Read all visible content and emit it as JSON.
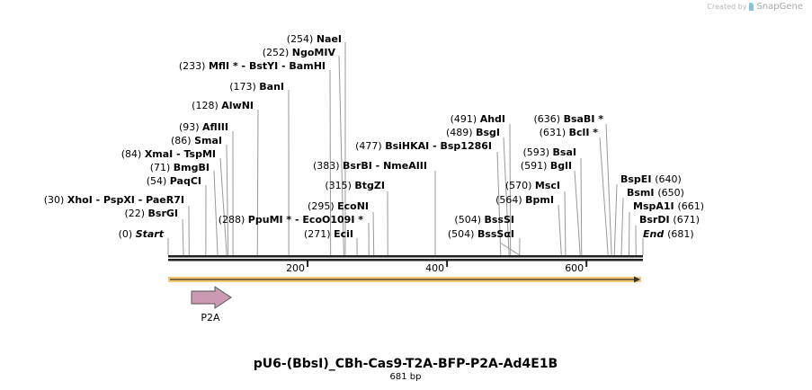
{
  "watermark": {
    "prefix": "Created by",
    "brand": "SnapGene"
  },
  "map": {
    "title": "pU6-(BbsI)_CBh-Cas9-T2A-BFP-P2A-Ad4E1B",
    "length_label": "681 bp",
    "length": 681,
    "ticks": [
      200,
      400,
      600
    ],
    "feature_color": "#f7c873",
    "sites": [
      {
        "pos": 254,
        "name": "NaeI"
      },
      {
        "pos": 252,
        "name": "NgoMIV"
      },
      {
        "pos": 233,
        "name": "MflI * - BstYI - BamHI"
      },
      {
        "pos": 173,
        "name": "BanI"
      },
      {
        "pos": 128,
        "name": "AlwNI"
      },
      {
        "pos": 93,
        "name": "AflIII"
      },
      {
        "pos": 86,
        "name": "SmaI"
      },
      {
        "pos": 84,
        "name": "XmaI - TspMI"
      },
      {
        "pos": 71,
        "name": "BmgBI"
      },
      {
        "pos": 54,
        "name": "PaqCI"
      },
      {
        "pos": 30,
        "name": "XhoI - PspXI - PaeR7I"
      },
      {
        "pos": 22,
        "name": "BsrGI"
      },
      {
        "pos": 0,
        "name": "Start"
      },
      {
        "pos": 288,
        "name": "PpuMI * - EcoO109I *"
      },
      {
        "pos": 271,
        "name": "EciI"
      },
      {
        "pos": 295,
        "name": "EcoNI"
      },
      {
        "pos": 315,
        "name": "BtgZI"
      },
      {
        "pos": 383,
        "name": "BsrBI - NmeAIII"
      },
      {
        "pos": 477,
        "name": "BsiHKAI - Bsp1286I"
      },
      {
        "pos": 491,
        "name": "AhdI"
      },
      {
        "pos": 489,
        "name": "BsgI"
      },
      {
        "pos": 504,
        "name": "BssSI"
      },
      {
        "pos": 504,
        "name": "BssSαI"
      },
      {
        "pos": 570,
        "name": "MscI"
      },
      {
        "pos": 564,
        "name": "BpmI"
      },
      {
        "pos": 593,
        "name": "BsaI"
      },
      {
        "pos": 591,
        "name": "BglI"
      },
      {
        "pos": 636,
        "name": "BsaBI *"
      },
      {
        "pos": 631,
        "name": "BclI *"
      },
      {
        "pos": 640,
        "name": "BspEI"
      },
      {
        "pos": 650,
        "name": "BsmI"
      },
      {
        "pos": 661,
        "name": "MspA1I"
      },
      {
        "pos": 671,
        "name": "BsrDI"
      },
      {
        "pos": 681,
        "name": "End"
      }
    ],
    "features": [
      {
        "name": "P2A",
        "start": 34,
        "end": 91,
        "color": "#cc99b3"
      }
    ]
  }
}
